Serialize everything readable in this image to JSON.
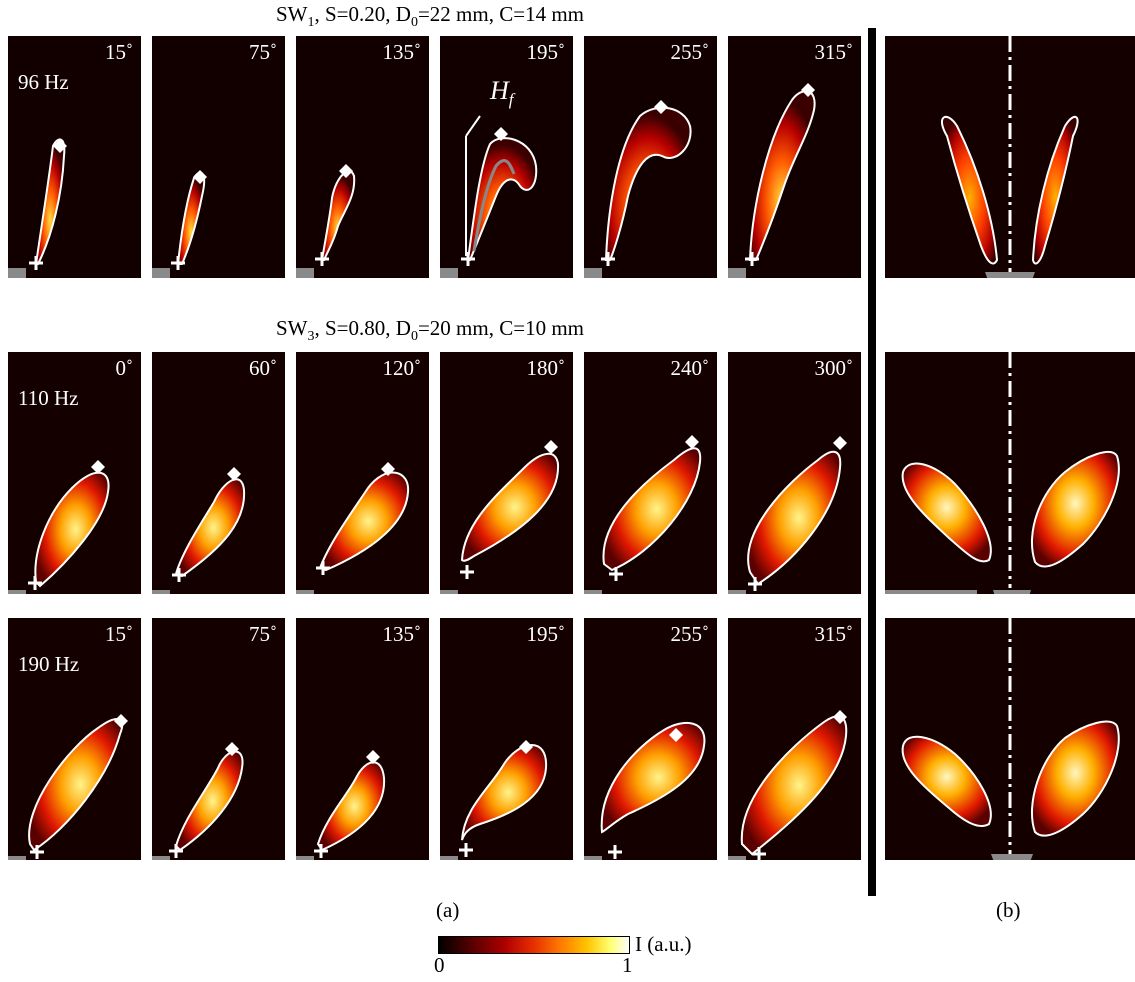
{
  "rows": [
    {
      "title_main": "SW",
      "title_sub": "1",
      "title_rest": ", S=0.20, D",
      "title_sub2": "0",
      "title_end": "=22 mm, C=14 mm",
      "frequency": "96 Hz",
      "angles": [
        "15˚",
        "75˚",
        "135˚",
        "195˚",
        "255˚",
        "315˚"
      ]
    },
    {
      "title_main": "SW",
      "title_sub": "3",
      "title_rest": ", S=0.80, D",
      "title_sub2": "0",
      "title_end": "=20 mm, C=10 mm",
      "frequency": "110 Hz",
      "angles": [
        "0˚",
        "60˚",
        "120˚",
        "180˚",
        "240˚",
        "300˚"
      ]
    },
    {
      "frequency": "190 Hz",
      "angles": [
        "15˚",
        "75˚",
        "135˚",
        "195˚",
        "255˚",
        "315˚"
      ]
    }
  ],
  "annotation": {
    "hf_main": "H",
    "hf_sub": "f"
  },
  "captions": {
    "a": "(a)",
    "b": "(b)"
  },
  "colorbar": {
    "min_label": "0",
    "max_label": "1",
    "label": "I (a.u.)",
    "colors": [
      "#000000",
      "#5a0000",
      "#b00000",
      "#e83000",
      "#ff7a00",
      "#ffc400",
      "#ffff70",
      "#ffffff"
    ]
  }
}
